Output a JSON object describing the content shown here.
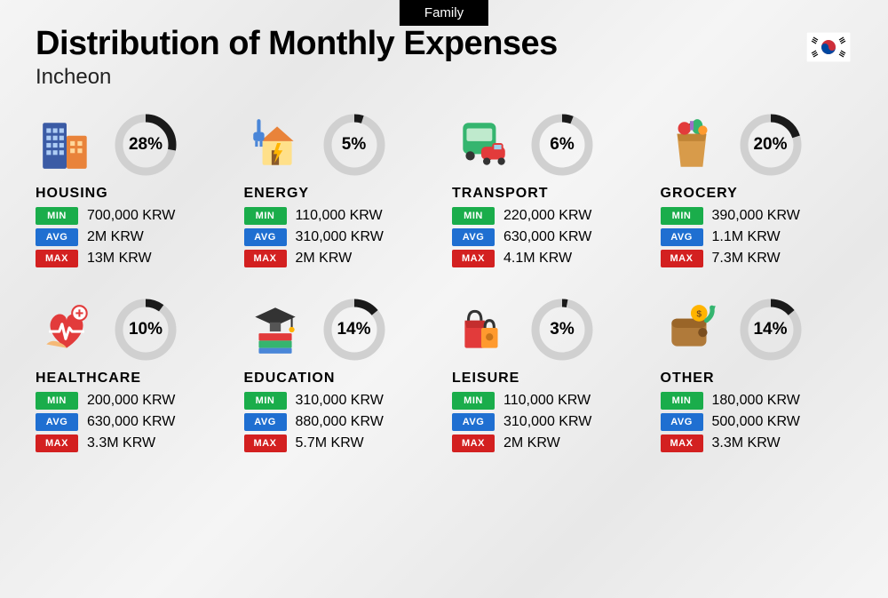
{
  "tag": "Family",
  "title": "Distribution of Monthly Expenses",
  "subtitle": "Incheon",
  "ring": {
    "radius": 30,
    "stroke_width": 9,
    "track_color": "#d0d0d0",
    "progress_color": "#1a1a1a"
  },
  "badges": {
    "min": {
      "label": "MIN",
      "color": "#1aad4b"
    },
    "avg": {
      "label": "AVG",
      "color": "#1f6fd1"
    },
    "max": {
      "label": "MAX",
      "color": "#d32020"
    }
  },
  "categories": [
    {
      "name": "HOUSING",
      "percent": 28,
      "min": "700,000 KRW",
      "avg": "2M KRW",
      "max": "13M KRW",
      "icon": "building"
    },
    {
      "name": "ENERGY",
      "percent": 5,
      "min": "110,000 KRW",
      "avg": "310,000 KRW",
      "max": "2M KRW",
      "icon": "energy"
    },
    {
      "name": "TRANSPORT",
      "percent": 6,
      "min": "220,000 KRW",
      "avg": "630,000 KRW",
      "max": "4.1M KRW",
      "icon": "transport"
    },
    {
      "name": "GROCERY",
      "percent": 20,
      "min": "390,000 KRW",
      "avg": "1.1M KRW",
      "max": "7.3M KRW",
      "icon": "grocery"
    },
    {
      "name": "HEALTHCARE",
      "percent": 10,
      "min": "200,000 KRW",
      "avg": "630,000 KRW",
      "max": "3.3M KRW",
      "icon": "health"
    },
    {
      "name": "EDUCATION",
      "percent": 14,
      "min": "310,000 KRW",
      "avg": "880,000 KRW",
      "max": "5.7M KRW",
      "icon": "education"
    },
    {
      "name": "LEISURE",
      "percent": 3,
      "min": "110,000 KRW",
      "avg": "310,000 KRW",
      "max": "2M KRW",
      "icon": "leisure"
    },
    {
      "name": "OTHER",
      "percent": 14,
      "min": "180,000 KRW",
      "avg": "500,000 KRW",
      "max": "3.3M KRW",
      "icon": "other"
    }
  ]
}
